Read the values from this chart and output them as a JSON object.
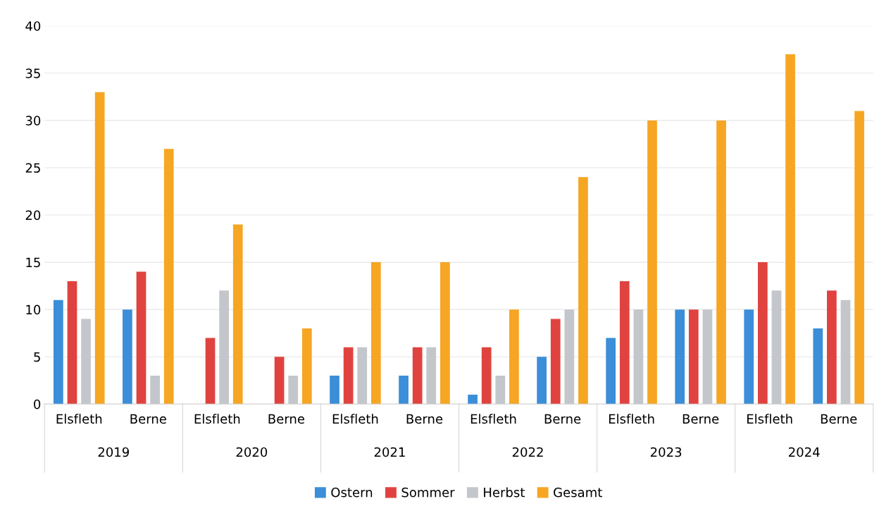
{
  "chart_data": {
    "type": "bar",
    "categories": [
      "Elsfleth",
      "Berne",
      "Elsfleth",
      "Berne",
      "Elsfleth",
      "Berne",
      "Elsfleth",
      "Berne",
      "Elsfleth",
      "Berne",
      "Elsfleth",
      "Berne"
    ],
    "annotations": [
      "2019",
      "2020",
      "2021",
      "2022",
      "2023",
      "2024"
    ],
    "series": [
      {
        "name": "Ostern",
        "color": "#3b8ed8",
        "values": [
          11,
          10,
          0,
          0,
          3,
          3,
          1,
          5,
          7,
          10,
          10,
          8
        ]
      },
      {
        "name": "Sommer",
        "color": "#e0433f",
        "values": [
          13,
          14,
          7,
          5,
          6,
          6,
          6,
          9,
          13,
          10,
          15,
          12
        ]
      },
      {
        "name": "Herbst",
        "color": "#c3c6ca",
        "values": [
          9,
          3,
          12,
          3,
          6,
          6,
          3,
          10,
          10,
          10,
          12,
          11
        ]
      },
      {
        "name": "Gesamt",
        "color": "#f6a623",
        "values": [
          33,
          27,
          19,
          8,
          15,
          15,
          10,
          24,
          30,
          30,
          37,
          31
        ]
      }
    ],
    "ylim": [
      0,
      40
    ],
    "yticks": [
      0,
      5,
      10,
      15,
      20,
      25,
      30,
      35,
      40
    ],
    "grid": "y",
    "legend": "bottom"
  }
}
